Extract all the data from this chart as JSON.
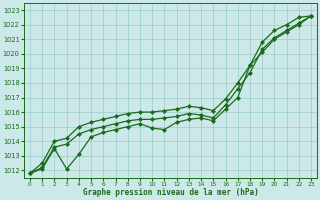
{
  "xlabel": "Graphe pression niveau de la mer (hPa)",
  "ylim": [
    1011.5,
    1023.5
  ],
  "xlim": [
    -0.5,
    23.5
  ],
  "yticks": [
    1012,
    1013,
    1014,
    1015,
    1016,
    1017,
    1018,
    1019,
    1020,
    1021,
    1022,
    1023
  ],
  "xticks": [
    0,
    1,
    2,
    3,
    4,
    5,
    6,
    7,
    8,
    9,
    10,
    11,
    12,
    13,
    14,
    15,
    16,
    17,
    18,
    19,
    20,
    21,
    22,
    23
  ],
  "bg_color": "#cce8e8",
  "grid_color": "#99cccc",
  "line_color": "#1a6b1a",
  "line1": [
    1011.8,
    1012.1,
    1013.5,
    1012.1,
    1013.1,
    1014.3,
    1014.6,
    1014.8,
    1015.0,
    1015.2,
    1014.9,
    1014.8,
    1015.3,
    1015.5,
    1015.6,
    1015.4,
    1016.2,
    1017.0,
    1019.2,
    1020.1,
    1021.0,
    1021.5,
    1022.0,
    1022.6
  ],
  "line2": [
    1011.8,
    1012.2,
    1013.6,
    1013.8,
    1014.5,
    1014.8,
    1015.0,
    1015.2,
    1015.4,
    1015.5,
    1015.5,
    1015.6,
    1015.7,
    1015.9,
    1015.8,
    1015.6,
    1016.5,
    1017.6,
    1018.7,
    1020.3,
    1021.1,
    1021.6,
    1022.1,
    1022.6
  ],
  "line3": [
    1011.8,
    1012.5,
    1014.0,
    1014.2,
    1015.0,
    1015.3,
    1015.5,
    1015.7,
    1015.9,
    1016.0,
    1016.0,
    1016.1,
    1016.2,
    1016.4,
    1016.3,
    1016.1,
    1016.9,
    1018.0,
    1019.2,
    1020.8,
    1021.6,
    1022.0,
    1022.5,
    1022.6
  ]
}
